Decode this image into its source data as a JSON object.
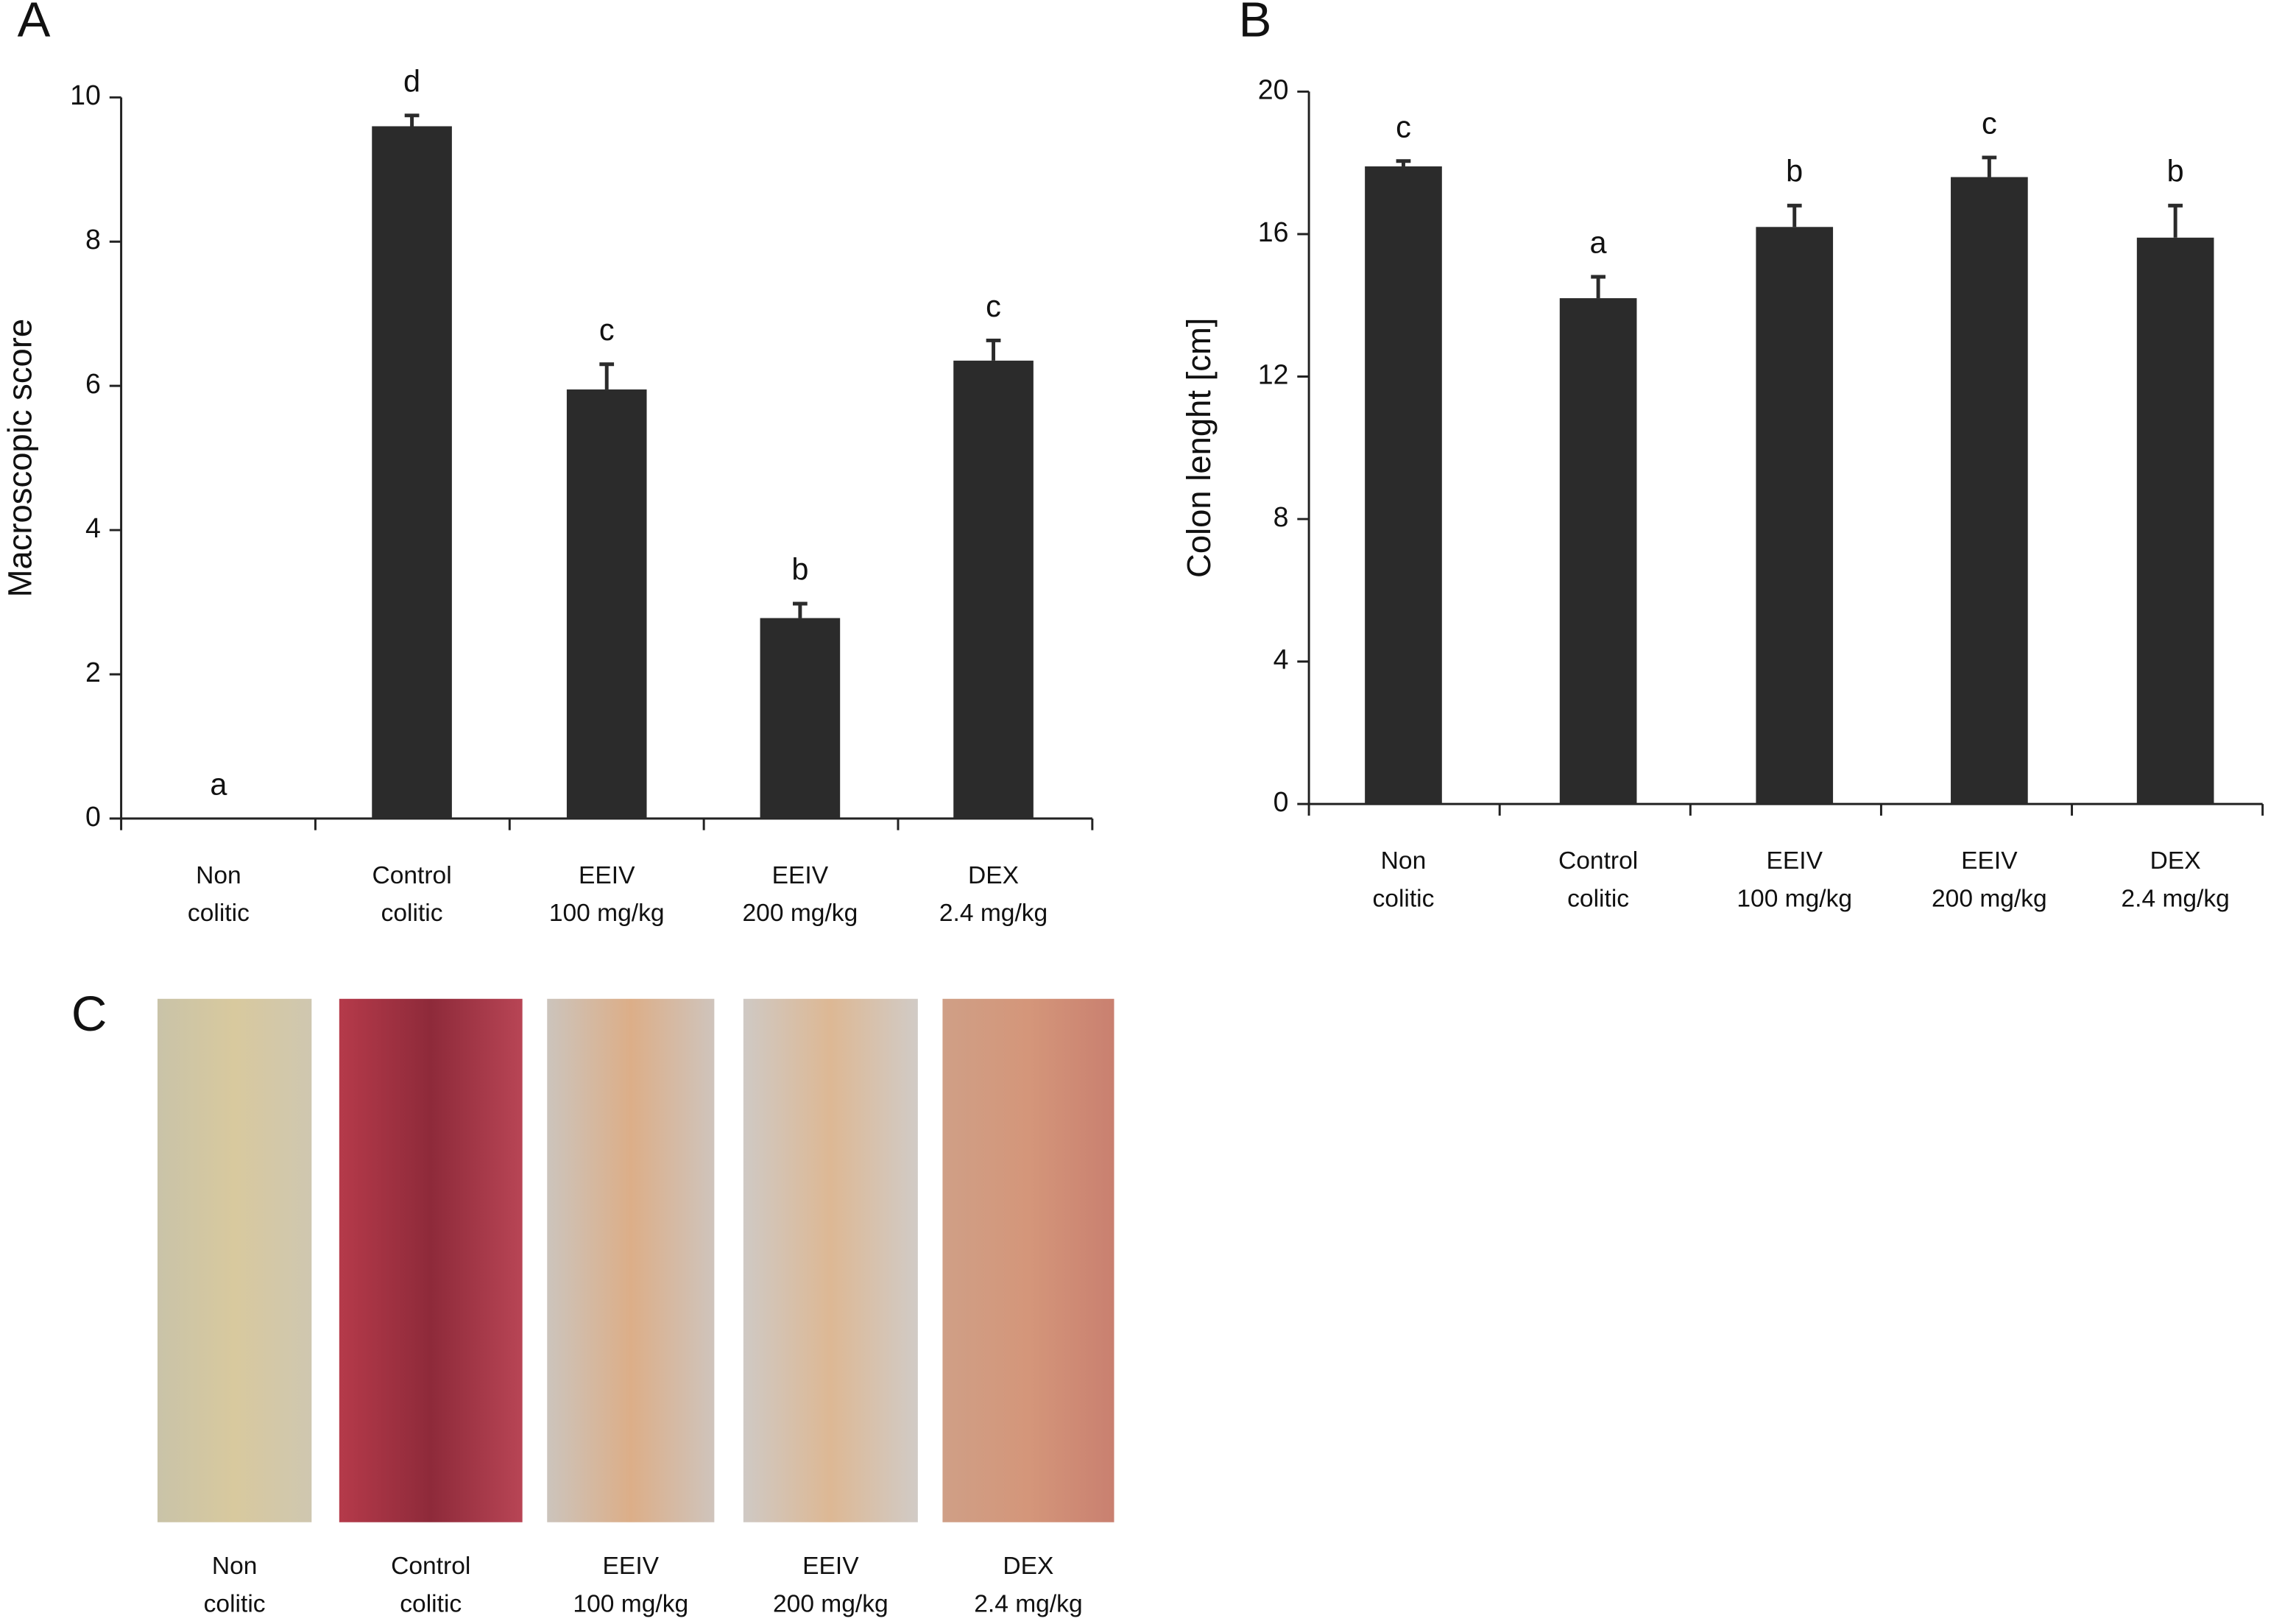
{
  "chart_data": [
    {
      "type": "bar",
      "panel": "A",
      "y_label": "Macroscopic score",
      "color": "#2b2b2b",
      "categories": [
        "Non\ncolitic",
        "Control\ncolitic",
        "EEIV\n100 mg/kg",
        "EEIV\n200 mg/kg",
        "DEX\n2.4 mg/kg"
      ],
      "values": [
        0,
        9.6,
        5.95,
        2.78,
        6.35
      ],
      "errors": [
        0,
        0.15,
        0.35,
        0.2,
        0.28
      ],
      "letters": [
        "a",
        "d",
        "c",
        "b",
        "c"
      ],
      "ylim": [
        0,
        10
      ],
      "yticks": [
        0,
        2,
        4,
        6,
        8,
        10
      ]
    },
    {
      "type": "bar",
      "panel": "B",
      "y_label": "Colon lenght [cm]",
      "color": "#2b2b2b",
      "categories": [
        "Non\ncolitic",
        "Control\ncolitic",
        "EEIV\n100 mg/kg",
        "EEIV\n200 mg/kg",
        "DEX\n2.4 mg/kg"
      ],
      "values": [
        17.9,
        14.2,
        16.2,
        17.6,
        15.9
      ],
      "errors": [
        0.15,
        0.6,
        0.6,
        0.55,
        0.9
      ],
      "letters": [
        "c",
        "a",
        "b",
        "c",
        "b"
      ],
      "ylim": [
        0,
        20
      ],
      "yticks": [
        0,
        4,
        8,
        12,
        16,
        20
      ]
    }
  ],
  "panel_c": {
    "label": "C",
    "images": [
      "Non\ncolitic",
      "Control\ncolitic",
      "EEIV\n100 mg/kg",
      "EEIV\n200 mg/kg",
      "DEX\n2.4 mg/kg"
    ]
  }
}
